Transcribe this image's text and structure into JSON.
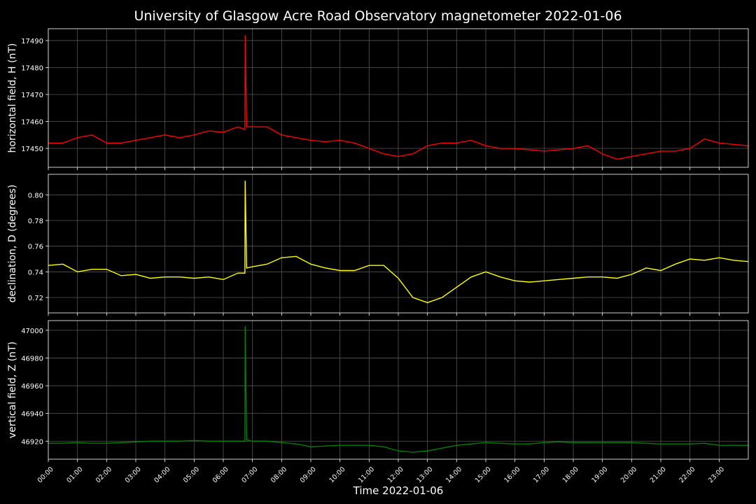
{
  "title": "University of Glasgow Acre Road Observatory magnetometer 2022-01-06",
  "chart_data": [
    {
      "type": "line",
      "ylabel": "horizontal field, H (nT)",
      "xlim": [
        0,
        24
      ],
      "ylim": [
        17443,
        17494.4
      ],
      "yticks": [
        17450,
        17460,
        17470,
        17480,
        17490
      ],
      "grid": true,
      "x": [
        0,
        0.5,
        1,
        1.5,
        2,
        2.5,
        3,
        3.5,
        4,
        4.5,
        5,
        5.5,
        6,
        6.5,
        6.74,
        6.75,
        6.8,
        7,
        7.5,
        8,
        8.5,
        9,
        9.5,
        10,
        10.5,
        11,
        11.5,
        12,
        12.5,
        13,
        13.5,
        14,
        14.5,
        15,
        15.5,
        16,
        16.5,
        17,
        17.5,
        18,
        18.5,
        19,
        19.5,
        20,
        20.5,
        21,
        21.5,
        22,
        22.5,
        23,
        23.5,
        24
      ],
      "series": [
        {
          "name": "H",
          "color": "#ff0000",
          "values": [
            17452,
            17452,
            17454,
            17455,
            17452,
            17452,
            17453,
            17454,
            17455,
            17454,
            17455,
            17456.5,
            17456,
            17458,
            17457,
            17492,
            17458,
            17458,
            17458,
            17455,
            17454,
            17453,
            17452.5,
            17453,
            17452,
            17450,
            17448,
            17447,
            17448,
            17451,
            17452,
            17452,
            17453,
            17451,
            17450,
            17450,
            17449.5,
            17449,
            17449.5,
            17450,
            17451,
            17448,
            17446,
            17447,
            17448,
            17449,
            17449,
            17450,
            17453.5,
            17452,
            17451.5,
            17451
          ]
        }
      ]
    },
    {
      "type": "line",
      "ylabel": "declination, D (degrees)",
      "xlim": [
        0,
        24
      ],
      "ylim": [
        0.708,
        0.816
      ],
      "yticks": [
        {
          "value": 0.72,
          "label": "0.72"
        },
        {
          "value": 0.74,
          "label": "0.74"
        },
        {
          "value": 0.76,
          "label": "0.76"
        },
        {
          "value": 0.78,
          "label": "0.78"
        },
        {
          "value": 0.8,
          "label": "0.80"
        }
      ],
      "grid": true,
      "x": [
        0,
        0.5,
        1,
        1.5,
        2,
        2.5,
        3,
        3.5,
        4,
        4.5,
        5,
        5.5,
        6,
        6.5,
        6.74,
        6.75,
        6.8,
        7,
        7.5,
        8,
        8.5,
        9,
        9.5,
        10,
        10.5,
        11,
        11.5,
        12,
        12.5,
        13,
        13.5,
        14,
        14.5,
        15,
        15.5,
        16,
        16.5,
        17,
        17.5,
        18,
        18.5,
        19,
        19.5,
        20,
        20.5,
        21,
        21.5,
        22,
        22.5,
        23,
        23.5,
        24
      ],
      "series": [
        {
          "name": "D",
          "color": "#ffff00",
          "values": [
            0.745,
            0.746,
            0.74,
            0.742,
            0.742,
            0.737,
            0.738,
            0.735,
            0.736,
            0.736,
            0.735,
            0.736,
            0.734,
            0.739,
            0.739,
            0.811,
            0.743,
            0.744,
            0.746,
            0.751,
            0.752,
            0.746,
            0.743,
            0.741,
            0.741,
            0.745,
            0.745,
            0.735,
            0.72,
            0.716,
            0.72,
            0.728,
            0.736,
            0.74,
            0.736,
            0.733,
            0.732,
            0.733,
            0.734,
            0.735,
            0.736,
            0.736,
            0.735,
            0.738,
            0.743,
            0.741,
            0.746,
            0.75,
            0.749,
            0.751,
            0.749,
            0.748
          ]
        }
      ]
    },
    {
      "type": "line",
      "ylabel": "vertical field, Z (nT)",
      "xlabel": "Time 2022-01-06",
      "xlim": [
        0,
        24
      ],
      "ylim": [
        46907,
        47007
      ],
      "yticks": [
        46920,
        46940,
        46960,
        46980,
        47000
      ],
      "grid": true,
      "xticks": [
        {
          "value": 0,
          "label": "00:00"
        },
        {
          "value": 1,
          "label": "01:00"
        },
        {
          "value": 2,
          "label": "02:00"
        },
        {
          "value": 3,
          "label": "03:00"
        },
        {
          "value": 4,
          "label": "04:00"
        },
        {
          "value": 5,
          "label": "05:00"
        },
        {
          "value": 6,
          "label": "06:00"
        },
        {
          "value": 7,
          "label": "07:00"
        },
        {
          "value": 8,
          "label": "08:00"
        },
        {
          "value": 9,
          "label": "09:00"
        },
        {
          "value": 10,
          "label": "10:00"
        },
        {
          "value": 11,
          "label": "11:00"
        },
        {
          "value": 12,
          "label": "12:00"
        },
        {
          "value": 13,
          "label": "13:00"
        },
        {
          "value": 14,
          "label": "14:00"
        },
        {
          "value": 15,
          "label": "15:00"
        },
        {
          "value": 16,
          "label": "16:00"
        },
        {
          "value": 17,
          "label": "17:00"
        },
        {
          "value": 18,
          "label": "18:00"
        },
        {
          "value": 19,
          "label": "19:00"
        },
        {
          "value": 20,
          "label": "20:00"
        },
        {
          "value": 21,
          "label": "21:00"
        },
        {
          "value": 22,
          "label": "22:00"
        },
        {
          "value": 23,
          "label": "23:00"
        }
      ],
      "x": [
        0,
        0.5,
        1,
        1.5,
        2,
        2.5,
        3,
        3.5,
        4,
        4.5,
        5,
        5.5,
        6,
        6.5,
        6.74,
        6.75,
        6.8,
        7,
        7.5,
        8,
        8.5,
        9,
        9.5,
        10,
        10.5,
        11,
        11.5,
        12,
        12.5,
        13,
        13.5,
        14,
        14.5,
        15,
        15.5,
        16,
        16.5,
        17,
        17.5,
        18,
        18.5,
        19,
        19.5,
        20,
        20.5,
        21,
        21.5,
        22,
        22.5,
        23,
        23.5,
        24
      ],
      "series": [
        {
          "name": "Z",
          "color": "#008000",
          "values": [
            46918.5,
            46918.5,
            46919,
            46918.5,
            46918.5,
            46919,
            46919.5,
            46920,
            46920,
            46920,
            46920.5,
            46920,
            46920,
            46920,
            46920,
            47003,
            46921,
            46920,
            46920,
            46919,
            46918,
            46916,
            46916.5,
            46917,
            46917,
            46917,
            46916,
            46913,
            46912,
            46913,
            46915,
            46917,
            46918,
            46919,
            46918.5,
            46918,
            46918,
            46919,
            46919.5,
            46919,
            46919,
            46919,
            46919,
            46919,
            46918.5,
            46918,
            46918,
            46918,
            46918.5,
            46917,
            46917,
            46917
          ]
        }
      ]
    }
  ]
}
